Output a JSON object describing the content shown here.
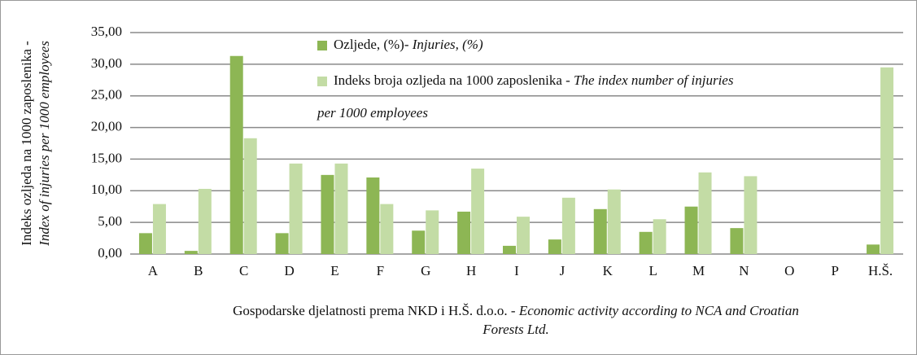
{
  "chart_data": {
    "type": "bar",
    "y_label": [
      [
        {
          "text": "Indeks ozljeda na 1000 zaposlenika -"
        }
      ],
      [
        {
          "text": "Index of injuries per 1000 employees",
          "italic": true
        }
      ]
    ],
    "x_label": [
      [
        {
          "text": "Gospodarske djelatnosti prema NKD i H.Š. d.o.o. - "
        },
        {
          "text": "Economic activity according to NCA and Croatian",
          "italic": true
        }
      ],
      [
        {
          "text": "Forests Ltd.",
          "italic": true
        }
      ]
    ],
    "categories": [
      "A",
      "B",
      "C",
      "D",
      "E",
      "F",
      "G",
      "H",
      "I",
      "J",
      "K",
      "L",
      "M",
      "N",
      "O",
      "P",
      "H.Š."
    ],
    "series": [
      {
        "name": "Ozljede, (%)- ",
        "name_italic": [
          "Injuries, (%)"
        ],
        "color": "#8db654",
        "values": [
          3.3,
          0.5,
          31.3,
          3.3,
          12.5,
          12.1,
          3.7,
          6.7,
          1.3,
          2.3,
          7.1,
          3.5,
          7.5,
          4.1,
          0,
          0,
          1.5
        ]
      },
      {
        "name": "Indeks broja ozljeda na 1000 zaposlenika - ",
        "name_italic": [
          "The index number of injuries",
          "per 1000 employees"
        ],
        "color": "#c3dca5",
        "values": [
          7.9,
          10.3,
          18.3,
          14.3,
          14.3,
          7.9,
          6.9,
          13.5,
          5.9,
          8.9,
          10.2,
          5.5,
          12.9,
          12.3,
          0,
          0,
          29.5
        ]
      }
    ],
    "ylim": [
      0,
      35
    ],
    "yticks": [
      {
        "value": 0,
        "label": "0,00"
      },
      {
        "value": 5,
        "label": "5,00"
      },
      {
        "value": 10,
        "label": "10,00"
      },
      {
        "value": 15,
        "label": "15,00"
      },
      {
        "value": 20,
        "label": "20,00"
      },
      {
        "value": 25,
        "label": "25,00"
      },
      {
        "value": 30,
        "label": "30,00"
      },
      {
        "value": 35,
        "label": "35,00"
      }
    ],
    "grid": true
  }
}
